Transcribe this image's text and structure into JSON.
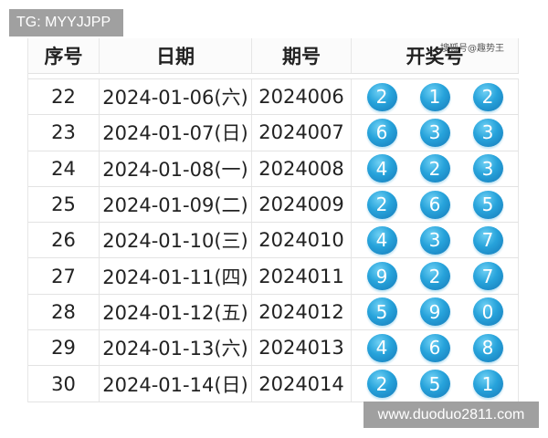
{
  "tg_label": "TG: MYYJJPP",
  "watermark": "搜狐号@趣势王",
  "site_label": "www.duoduo2811.com",
  "ball_color": "#27a3db",
  "headers": {
    "index": "序号",
    "date": "日期",
    "issue": "期号",
    "numbers": "开奖号"
  },
  "rows": [
    {
      "index": "22",
      "date": "2024-01-06(六)",
      "issue": "2024006",
      "numbers": [
        "2",
        "1",
        "2"
      ]
    },
    {
      "index": "23",
      "date": "2024-01-07(日)",
      "issue": "2024007",
      "numbers": [
        "6",
        "3",
        "3"
      ]
    },
    {
      "index": "24",
      "date": "2024-01-08(一)",
      "issue": "2024008",
      "numbers": [
        "4",
        "2",
        "3"
      ]
    },
    {
      "index": "25",
      "date": "2024-01-09(二)",
      "issue": "2024009",
      "numbers": [
        "2",
        "6",
        "5"
      ]
    },
    {
      "index": "26",
      "date": "2024-01-10(三)",
      "issue": "2024010",
      "numbers": [
        "4",
        "3",
        "7"
      ]
    },
    {
      "index": "27",
      "date": "2024-01-11(四)",
      "issue": "2024011",
      "numbers": [
        "9",
        "2",
        "7"
      ]
    },
    {
      "index": "28",
      "date": "2024-01-12(五)",
      "issue": "2024012",
      "numbers": [
        "5",
        "9",
        "0"
      ]
    },
    {
      "index": "29",
      "date": "2024-01-13(六)",
      "issue": "2024013",
      "numbers": [
        "4",
        "6",
        "8"
      ]
    },
    {
      "index": "30",
      "date": "2024-01-14(日)",
      "issue": "2024014",
      "numbers": [
        "2",
        "5",
        "1"
      ]
    }
  ]
}
